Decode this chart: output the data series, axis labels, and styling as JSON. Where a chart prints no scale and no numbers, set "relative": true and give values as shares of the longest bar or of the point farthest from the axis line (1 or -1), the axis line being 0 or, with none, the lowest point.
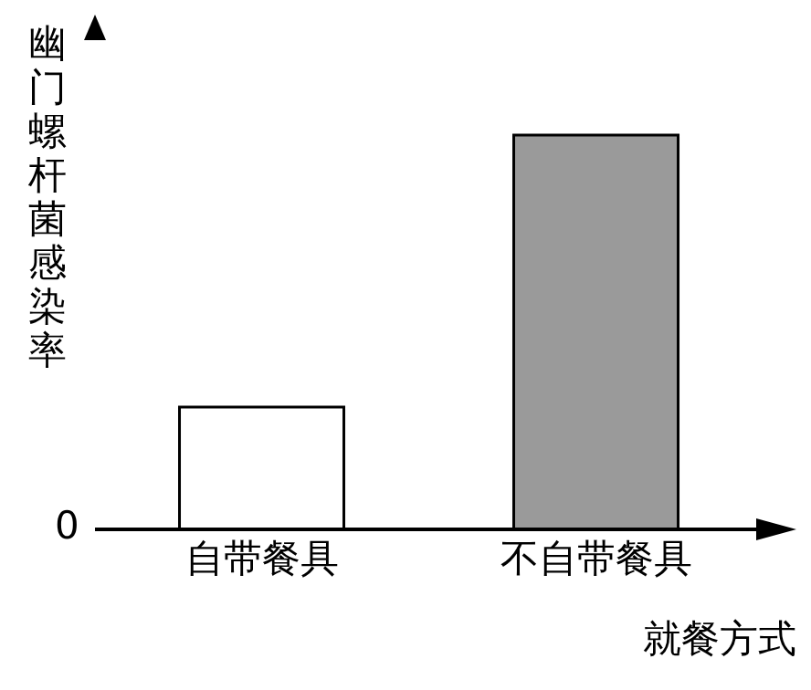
{
  "chart_data": {
    "type": "bar",
    "relative": true,
    "ylabel": "幽门螺杆菌感染率",
    "xlabel": "就餐方式",
    "categories": [
      "自带餐具",
      "不自带餐具"
    ],
    "values": [
      0.31,
      1
    ],
    "colors": [
      "#ffffff",
      "#9a9a9a"
    ],
    "annotations": [
      "0"
    ]
  }
}
